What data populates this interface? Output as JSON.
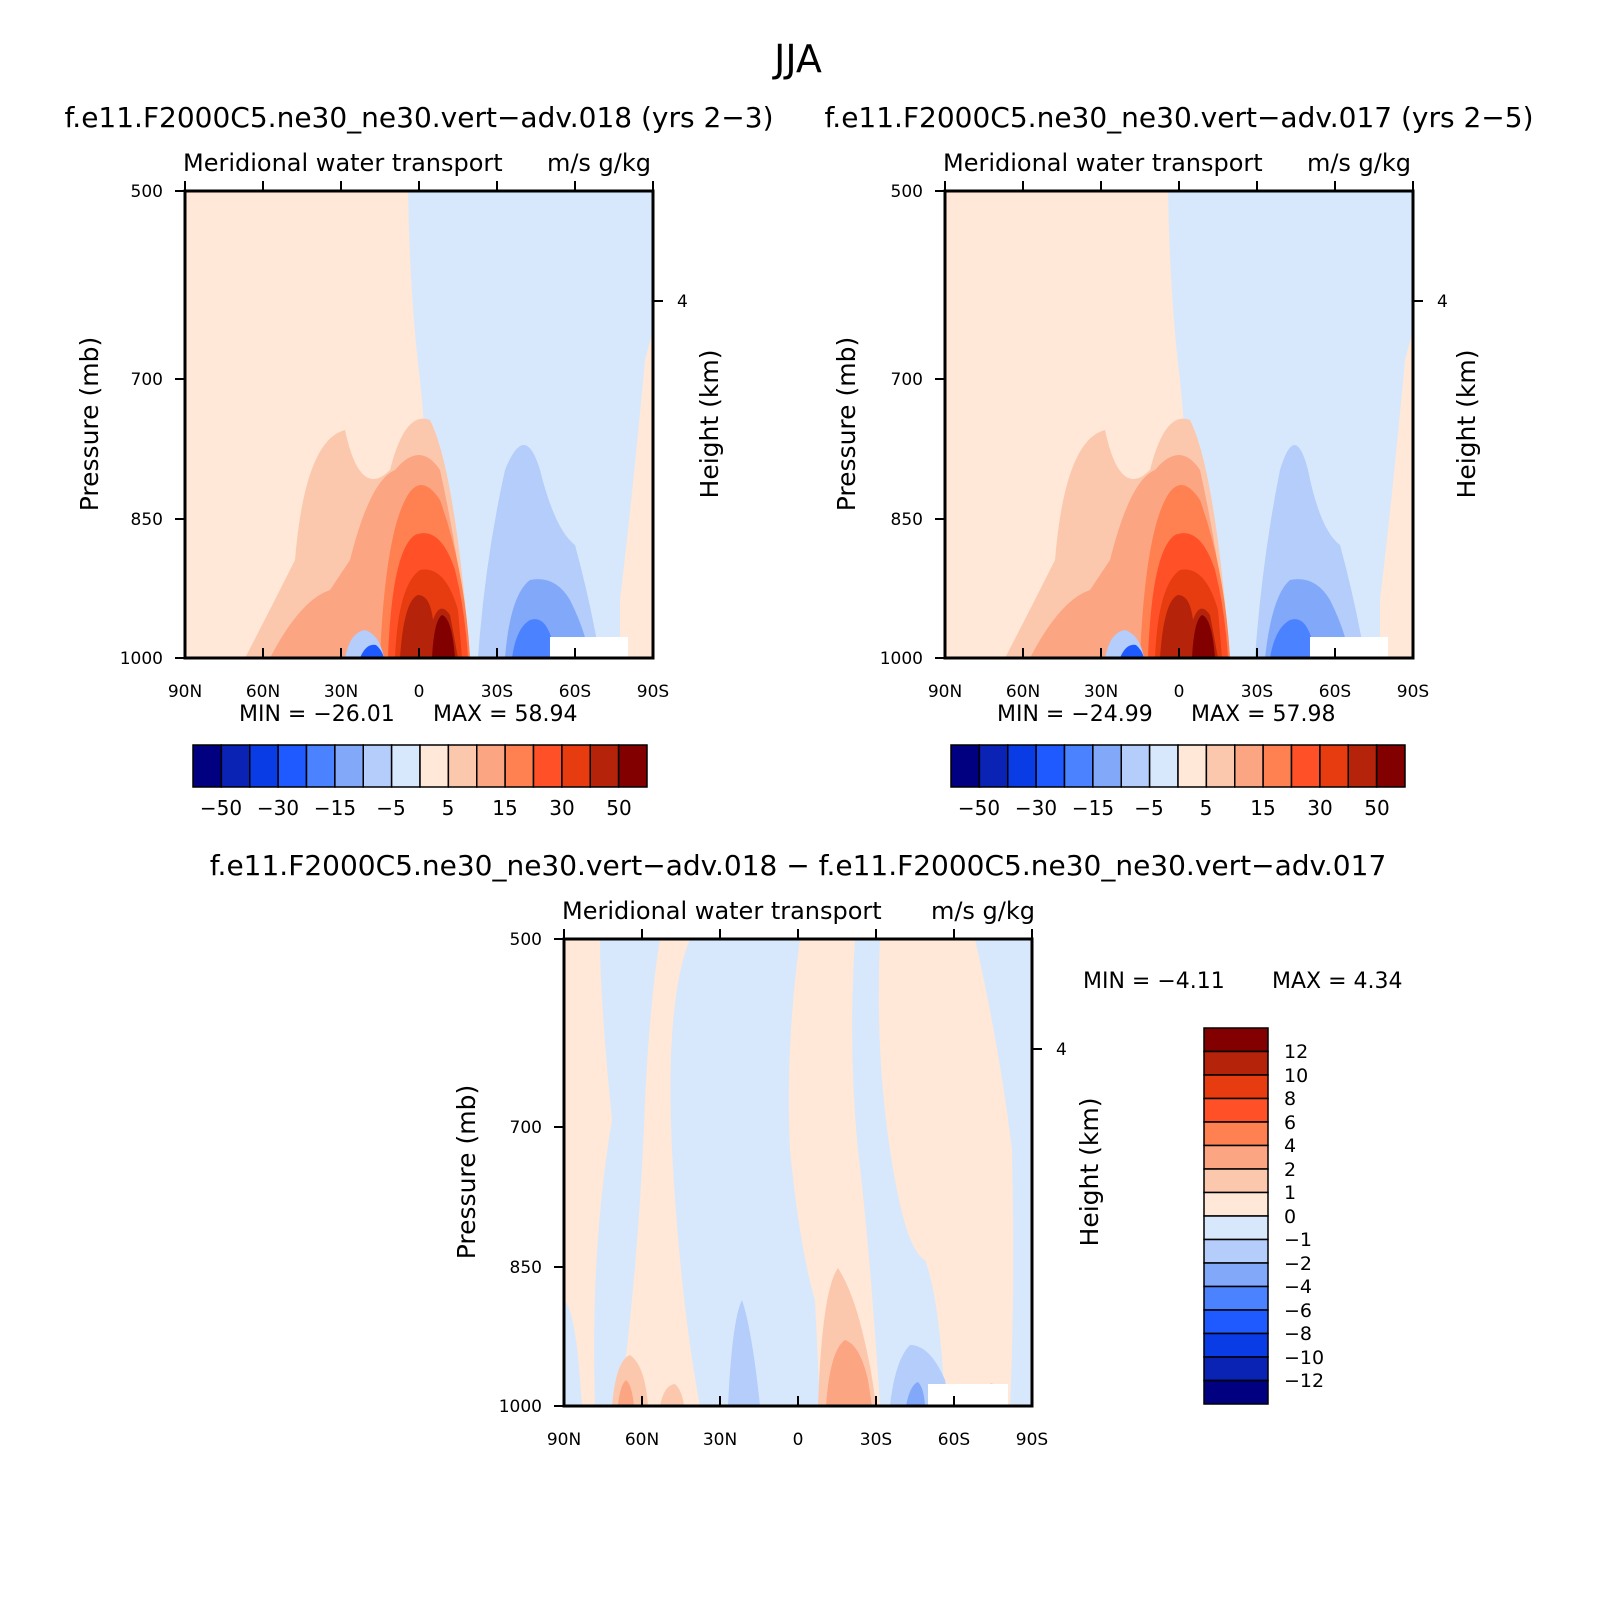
{
  "title": "JJA",
  "panels": [
    {
      "id": "p1",
      "title": "f.e11.F2000C5.ne30_ne30.vert−adv.018 (yrs 2−3)",
      "left_string": "Meridional water transport",
      "right_string": "m/s g/kg",
      "ylabel": "Pressure (mb)",
      "ylabel_right": "Height (km)",
      "yticks": [
        "500",
        "700",
        "850",
        "1000"
      ],
      "yticks_right": [
        "4"
      ],
      "xticks": [
        "90N",
        "60N",
        "30N",
        "0",
        "30S",
        "60S",
        "90S"
      ],
      "min_label": "MIN = −26.01",
      "max_label": "MAX = 58.94",
      "colorbar_labels": [
        "−50",
        "−30",
        "−15",
        "−5",
        "5",
        "15",
        "30",
        "50"
      ]
    },
    {
      "id": "p2",
      "title": "f.e11.F2000C5.ne30_ne30.vert−adv.017 (yrs 2−5)",
      "left_string": "Meridional water transport",
      "right_string": "m/s g/kg",
      "ylabel": "Pressure (mb)",
      "ylabel_right": "Height (km)",
      "yticks": [
        "500",
        "700",
        "850",
        "1000"
      ],
      "yticks_right": [
        "4"
      ],
      "xticks": [
        "90N",
        "60N",
        "30N",
        "0",
        "30S",
        "60S",
        "90S"
      ],
      "min_label": "MIN = −24.99",
      "max_label": "MAX = 57.98",
      "colorbar_labels": [
        "−50",
        "−30",
        "−15",
        "−5",
        "5",
        "15",
        "30",
        "50"
      ]
    },
    {
      "id": "p3",
      "title": "f.e11.F2000C5.ne30_ne30.vert−adv.018 − f.e11.F2000C5.ne30_ne30.vert−adv.017",
      "left_string": "Meridional water transport",
      "right_string": "m/s g/kg",
      "ylabel": "Pressure (mb)",
      "ylabel_right": "Height (km)",
      "yticks": [
        "500",
        "700",
        "850",
        "1000"
      ],
      "yticks_right": [
        "4"
      ],
      "xticks": [
        "90N",
        "60N",
        "30N",
        "0",
        "30S",
        "60S",
        "90S"
      ],
      "min_label": "MIN = −4.11",
      "max_label": "MAX = 4.34",
      "colorbar_labels": [
        "12",
        "10",
        "8",
        "6",
        "4",
        "2",
        "1",
        "0",
        "−1",
        "−2",
        "−4",
        "−6",
        "−8",
        "−10",
        "−12"
      ]
    }
  ],
  "colors": {
    "main_palette": [
      "#000080",
      "#0a23b4",
      "#0a3ce6",
      "#1e5aff",
      "#4b82ff",
      "#82a8fa",
      "#b4cdfa",
      "#d7e8fc",
      "#ffe8d7",
      "#fcc8ad",
      "#fca582",
      "#ff8050",
      "#ff5028",
      "#e63c0f",
      "#b4230a",
      "#820000"
    ],
    "diff_palette": [
      "#820000",
      "#b4230a",
      "#e63c0f",
      "#ff5028",
      "#ff8050",
      "#fca582",
      "#fcc8ad",
      "#ffe8d7",
      "#d7e8fc",
      "#b4cdfa",
      "#82a8fa",
      "#4b82ff",
      "#1e5aff",
      "#0a3ce6",
      "#0a23b4",
      "#000080"
    ]
  },
  "chart_data": [
    {
      "type": "heatmap",
      "title": "f.e11.F2000C5.ne30_ne30.vert−adv.018 (yrs 2−3)",
      "xlabel": "",
      "ylabel": "Pressure (mb)",
      "y2label": "Height (km)",
      "x_range": [
        "90N",
        "90S"
      ],
      "y_range_mb": [
        1000,
        500
      ],
      "y_scale": "log",
      "contour_levels": [
        -50,
        -40,
        -30,
        -20,
        -15,
        -10,
        -5,
        0,
        5,
        10,
        15,
        20,
        30,
        40,
        50
      ],
      "min": -26.01,
      "max": 58.94,
      "units": "m/s g/kg",
      "grid": false
    },
    {
      "type": "heatmap",
      "title": "f.e11.F2000C5.ne30_ne30.vert−adv.017 (yrs 2−5)",
      "xlabel": "",
      "ylabel": "Pressure (mb)",
      "y2label": "Height (km)",
      "x_range": [
        "90N",
        "90S"
      ],
      "y_range_mb": [
        1000,
        500
      ],
      "y_scale": "log",
      "contour_levels": [
        -50,
        -40,
        -30,
        -20,
        -15,
        -10,
        -5,
        0,
        5,
        10,
        15,
        20,
        30,
        40,
        50
      ],
      "min": -24.99,
      "max": 57.98,
      "units": "m/s g/kg",
      "grid": false
    },
    {
      "type": "heatmap",
      "title": "f.e11.F2000C5.ne30_ne30.vert−adv.018 − f.e11.F2000C5.ne30_ne30.vert−adv.017",
      "xlabel": "",
      "ylabel": "Pressure (mb)",
      "y2label": "Height (km)",
      "x_range": [
        "90N",
        "90S"
      ],
      "y_range_mb": [
        1000,
        500
      ],
      "y_scale": "log",
      "contour_levels": [
        -12,
        -10,
        -8,
        -6,
        -4,
        -2,
        -1,
        0,
        1,
        2,
        4,
        6,
        8,
        10,
        12
      ],
      "min": -4.11,
      "max": 4.34,
      "units": "m/s g/kg",
      "grid": false
    }
  ]
}
